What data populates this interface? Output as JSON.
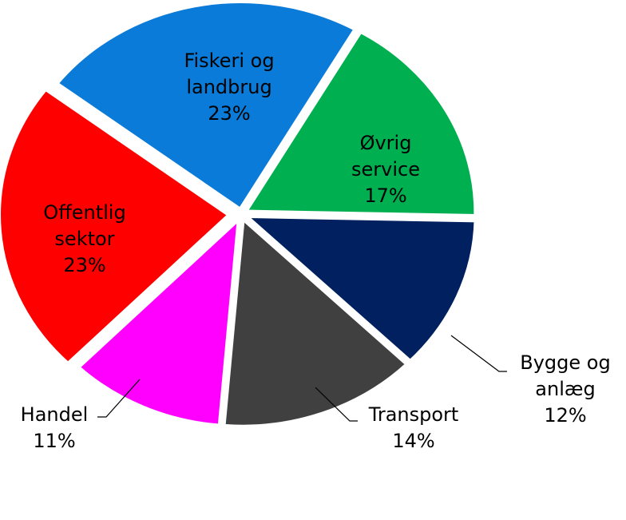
{
  "chart_data": {
    "type": "pie",
    "categories": [
      "Øvrig service",
      "Bygge og anlæg",
      "Transport",
      "Handel",
      "Offentlig sektor",
      "Fiskeri og landbrug"
    ],
    "values": [
      17,
      12,
      14,
      11,
      23,
      23
    ],
    "value_labels": [
      "17%",
      "12%",
      "14%",
      "11%",
      "23%",
      "23%"
    ],
    "colors": [
      "#00b050",
      "#002060",
      "#404040",
      "#ff00ff",
      "#ff0000",
      "#0a7bd8"
    ]
  }
}
